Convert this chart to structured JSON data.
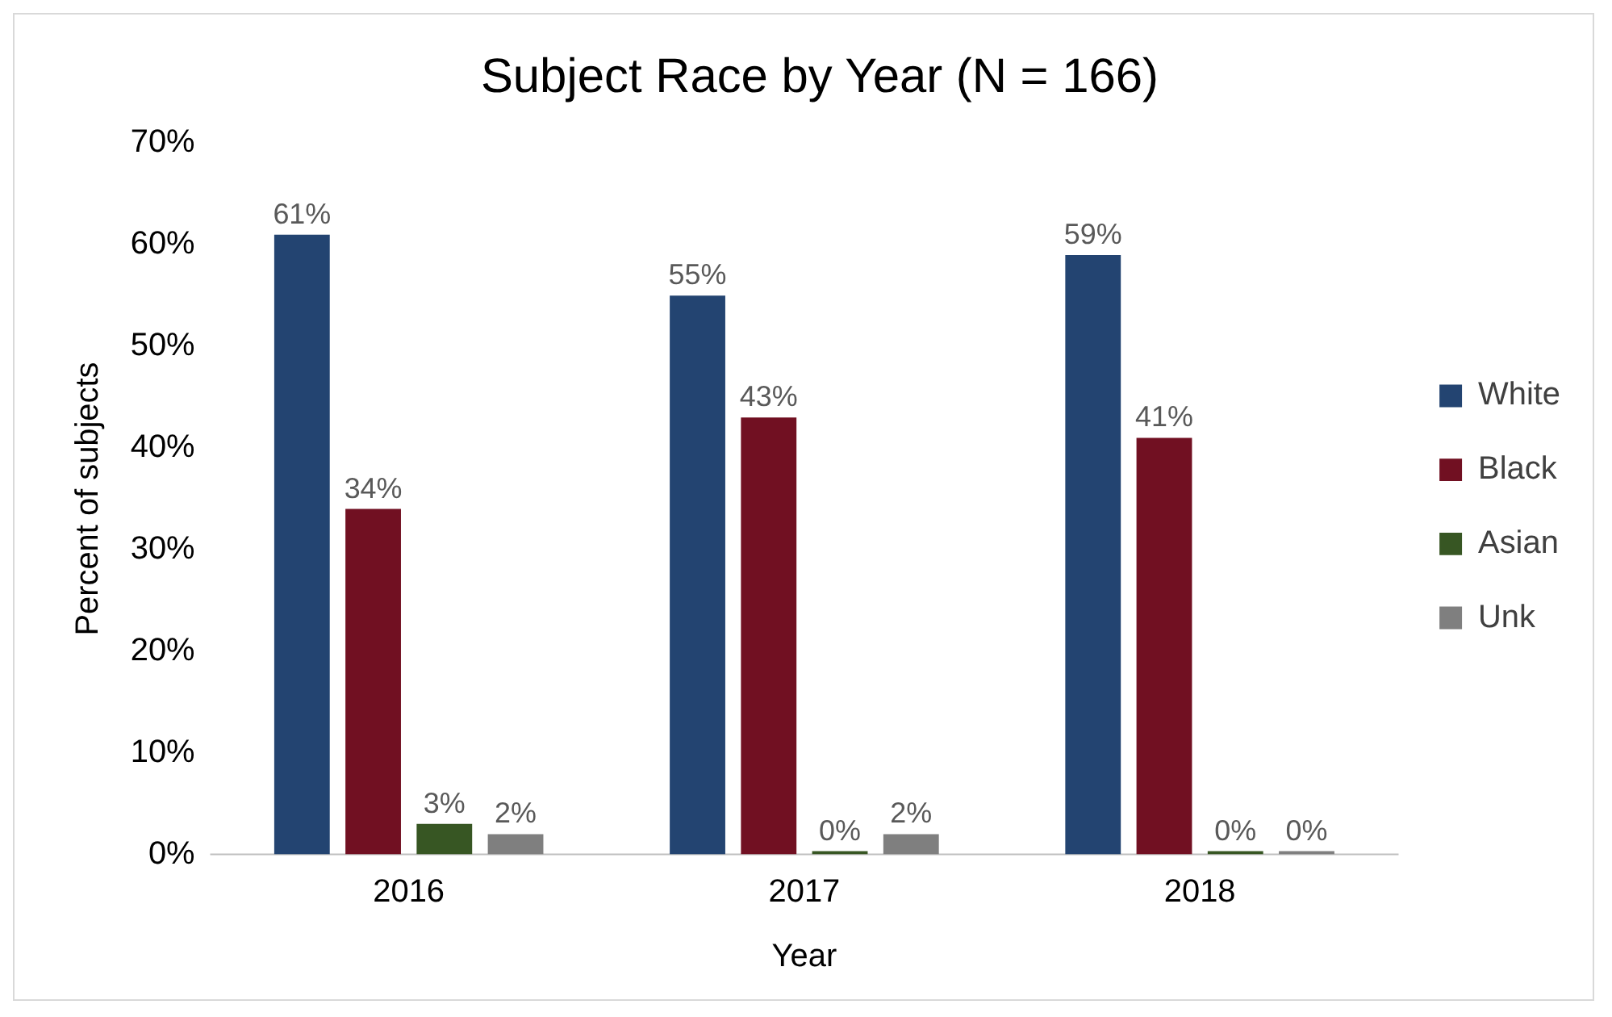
{
  "chart_data": {
    "type": "bar",
    "title": "Subject Race by Year (N = 166)",
    "xlabel": "Year",
    "ylabel": "Percent of subjects",
    "categories": [
      "2016",
      "2017",
      "2018"
    ],
    "series": [
      {
        "name": "White",
        "color": "#234471",
        "values": [
          61,
          55,
          59
        ],
        "value_labels": [
          "61%",
          "55%",
          "59%"
        ]
      },
      {
        "name": "Black",
        "color": "#711022",
        "values": [
          34,
          43,
          41
        ],
        "value_labels": [
          "34%",
          "43%",
          "41%"
        ]
      },
      {
        "name": "Asian",
        "color": "#375623",
        "values": [
          3,
          0,
          0
        ],
        "value_labels": [
          "3%",
          "0%",
          "0%"
        ]
      },
      {
        "name": "Unk",
        "color": "#7f7f7f",
        "values": [
          2,
          2,
          0
        ],
        "value_labels": [
          "2%",
          "2%",
          "0%"
        ]
      }
    ],
    "ylim": [
      0,
      70
    ],
    "yticks": [
      {
        "value": 0,
        "label": "0%"
      },
      {
        "value": 10,
        "label": "10%"
      },
      {
        "value": 20,
        "label": "20%"
      },
      {
        "value": 30,
        "label": "30%"
      },
      {
        "value": 40,
        "label": "40%"
      },
      {
        "value": 50,
        "label": "50%"
      },
      {
        "value": 60,
        "label": "60%"
      },
      {
        "value": 70,
        "label": "70%"
      }
    ],
    "grid": false,
    "legend": "right"
  }
}
